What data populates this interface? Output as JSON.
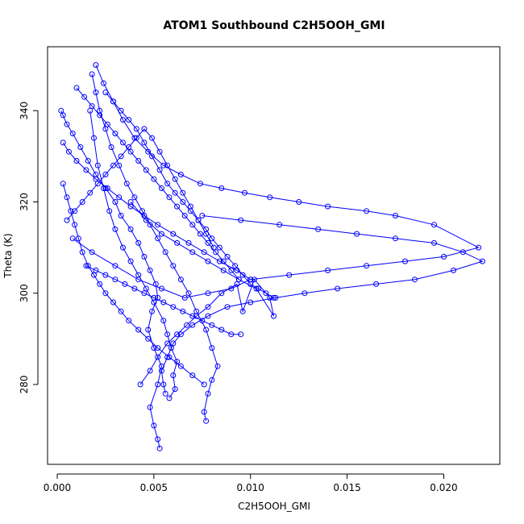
{
  "chart_data": {
    "type": "scatter",
    "title": "ATOM1 Southbound C2H5OOH_GMI",
    "xlabel": "C2H5OOH_GMI",
    "ylabel": "Theta (K)",
    "xlim": [
      -0.0005,
      0.0229
    ],
    "ylim": [
      262.5,
      354
    ],
    "grid": false,
    "x_ticks": [
      0.0,
      0.005,
      0.01,
      0.015,
      0.02
    ],
    "x_tick_labels": [
      "0.000",
      "0.005",
      "0.010",
      "0.015",
      "0.020"
    ],
    "y_ticks": [
      280,
      300,
      320,
      340
    ],
    "y_tick_labels": [
      "280",
      "300",
      "320",
      "340"
    ],
    "color": "#0000ff",
    "marker": "open-circle",
    "connected": true,
    "series": [
      {
        "x": [
          0.0053,
          0.0052,
          0.005,
          0.0048,
          0.0052,
          0.0054,
          0.005,
          0.0047,
          0.0049,
          0.0052,
          0.0051,
          0.0048,
          0.0045,
          0.0042,
          0.0038,
          0.0033,
          0.003,
          0.0025,
          0.002,
          0.0016,
          0.0012,
          0.0008,
          0.0005,
          0.0003,
          0.0002
        ],
        "y": [
          266,
          268,
          271,
          275,
          280,
          284,
          288,
          292,
          296,
          299,
          302,
          305,
          308,
          311,
          314,
          317,
          320,
          323,
          326,
          329,
          332,
          335,
          337,
          339,
          340
        ]
      },
      {
        "x": [
          0.0077,
          0.0076,
          0.0078,
          0.008,
          0.0083,
          0.008,
          0.0077,
          0.0072,
          0.0068,
          0.0064,
          0.006,
          0.0056,
          0.0052,
          0.0048,
          0.0044,
          0.004,
          0.0036,
          0.0032,
          0.0028,
          0.0025,
          0.0022,
          0.002,
          0.0018
        ],
        "y": [
          272,
          274,
          278,
          281,
          284,
          288,
          292,
          296,
          300,
          303,
          306,
          309,
          312,
          315,
          318,
          321,
          324,
          328,
          332,
          336,
          340,
          344,
          348
        ]
      },
      {
        "x": [
          0.0058,
          0.0061,
          0.006,
          0.0062,
          0.0059,
          0.0057,
          0.0055,
          0.005,
          0.0046,
          0.0042,
          0.0038,
          0.0034,
          0.003,
          0.0027,
          0.0024,
          0.0021,
          0.0019,
          0.0017
        ],
        "y": [
          277,
          279,
          282,
          285,
          288,
          291,
          294,
          298,
          301,
          304,
          307,
          310,
          314,
          318,
          323,
          328,
          334,
          340
        ]
      },
      {
        "x": [
          0.0056,
          0.0055,
          0.0054,
          0.0057,
          0.006,
          0.0064,
          0.007,
          0.0078,
          0.0088,
          0.01,
          0.0113,
          0.0128,
          0.0145,
          0.0165,
          0.0185,
          0.0205,
          0.022,
          0.021,
          0.0195,
          0.0175,
          0.0155,
          0.0135,
          0.0115,
          0.0095,
          0.0075
        ],
        "y": [
          278,
          280,
          283,
          286,
          289,
          291,
          293,
          295,
          297,
          298,
          299,
          300,
          301,
          302,
          303,
          305,
          307,
          309,
          311,
          312,
          313,
          314,
          315,
          316,
          317
        ]
      },
      {
        "x": [
          0.0043,
          0.0048,
          0.0052,
          0.0057,
          0.0062,
          0.0067,
          0.0072,
          0.0078,
          0.0085,
          0.0093,
          0.0096,
          0.0102,
          0.011,
          0.0112,
          0.0103,
          0.0094,
          0.0086,
          0.0078,
          0.007,
          0.0062,
          0.0054,
          0.0046,
          0.0038
        ],
        "y": [
          280,
          283,
          286,
          289,
          291,
          293,
          295,
          297,
          300,
          302,
          296,
          303,
          299,
          295,
          301,
          303,
          305,
          307,
          309,
          311,
          313,
          316,
          320
        ]
      },
      {
        "x": [
          0.002,
          0.0024,
          0.0029,
          0.0034,
          0.004,
          0.0047,
          0.0055,
          0.0064,
          0.0074,
          0.0085,
          0.0097,
          0.011,
          0.0125,
          0.014,
          0.016,
          0.0175,
          0.0195,
          0.0218,
          0.02,
          0.018,
          0.016,
          0.014,
          0.012,
          0.01
        ],
        "y": [
          350,
          346,
          342,
          338,
          334,
          331,
          328,
          326,
          324,
          323,
          322,
          321,
          320,
          319,
          318,
          317,
          315,
          310,
          308,
          307,
          306,
          305,
          304,
          303
        ]
      },
      {
        "x": [
          0.001,
          0.0014,
          0.0018,
          0.0022,
          0.0026,
          0.003,
          0.0034,
          0.0038,
          0.0042,
          0.0046,
          0.005,
          0.0054,
          0.0058,
          0.0062,
          0.0066,
          0.007,
          0.0074,
          0.0078,
          0.0082,
          0.0086,
          0.009,
          0.0094
        ],
        "y": [
          345,
          343,
          341,
          339,
          337,
          335,
          333,
          331,
          329,
          327,
          325,
          323,
          321,
          319,
          317,
          315,
          313,
          311,
          309,
          307,
          305,
          303
        ]
      },
      {
        "x": [
          0.0003,
          0.0006,
          0.001,
          0.0015,
          0.002,
          0.0026,
          0.0032,
          0.0038,
          0.0045,
          0.0052,
          0.006,
          0.0068,
          0.0076,
          0.0084,
          0.0093,
          0.01,
          0.009,
          0.0078,
          0.0066,
          0.0054,
          0.0042,
          0.003,
          0.0018,
          0.0008
        ],
        "y": [
          333,
          331,
          329,
          327,
          325,
          323,
          321,
          319,
          317,
          315,
          313,
          311,
          309,
          307,
          305,
          303,
          301,
          300,
          299,
          301,
          303,
          306,
          309,
          312
        ]
      },
      {
        "x": [
          0.0005,
          0.0009,
          0.0013,
          0.0017,
          0.0021,
          0.0025,
          0.0029,
          0.0033,
          0.0037,
          0.0041,
          0.0045,
          0.0049,
          0.0053,
          0.0057,
          0.0061,
          0.0065,
          0.0069,
          0.0073,
          0.0077,
          0.0081
        ],
        "y": [
          316,
          318,
          320,
          322,
          324,
          326,
          328,
          330,
          332,
          334,
          336,
          334,
          331,
          328,
          325,
          322,
          319,
          316,
          313,
          310
        ]
      },
      {
        "x": [
          0.0015,
          0.002,
          0.0025,
          0.003,
          0.0035,
          0.004,
          0.0045,
          0.005,
          0.0055,
          0.006,
          0.0065,
          0.007,
          0.0075,
          0.008,
          0.0085,
          0.009,
          0.0095
        ],
        "y": [
          306,
          305,
          304,
          303,
          302,
          301,
          300,
          299,
          298,
          297,
          296,
          295,
          294,
          293,
          292,
          291,
          291
        ]
      },
      {
        "x": [
          0.0025,
          0.0029,
          0.0033,
          0.0037,
          0.0041,
          0.0045,
          0.0049,
          0.0053,
          0.0057,
          0.0061,
          0.0065,
          0.0069,
          0.0073,
          0.0077,
          0.008,
          0.0084,
          0.0088,
          0.0092,
          0.0096,
          0.01,
          0.0104,
          0.0108,
          0.0112
        ],
        "y": [
          344,
          342,
          340,
          338,
          336,
          333,
          330,
          327,
          324,
          322,
          320,
          318,
          316,
          314,
          312,
          310,
          308,
          306,
          304,
          302,
          301,
          300,
          299
        ]
      },
      {
        "x": [
          0.0003,
          0.0005,
          0.0007,
          0.0009,
          0.0011,
          0.0013,
          0.0016,
          0.0019,
          0.0022,
          0.0025,
          0.0029,
          0.0033,
          0.0037,
          0.0042,
          0.0047,
          0.0052,
          0.0058,
          0.0064,
          0.007,
          0.0076
        ],
        "y": [
          324,
          321,
          318,
          315,
          312,
          309,
          306,
          304,
          302,
          300,
          298,
          296,
          294,
          292,
          290,
          288,
          286,
          284,
          282,
          280
        ]
      }
    ]
  }
}
